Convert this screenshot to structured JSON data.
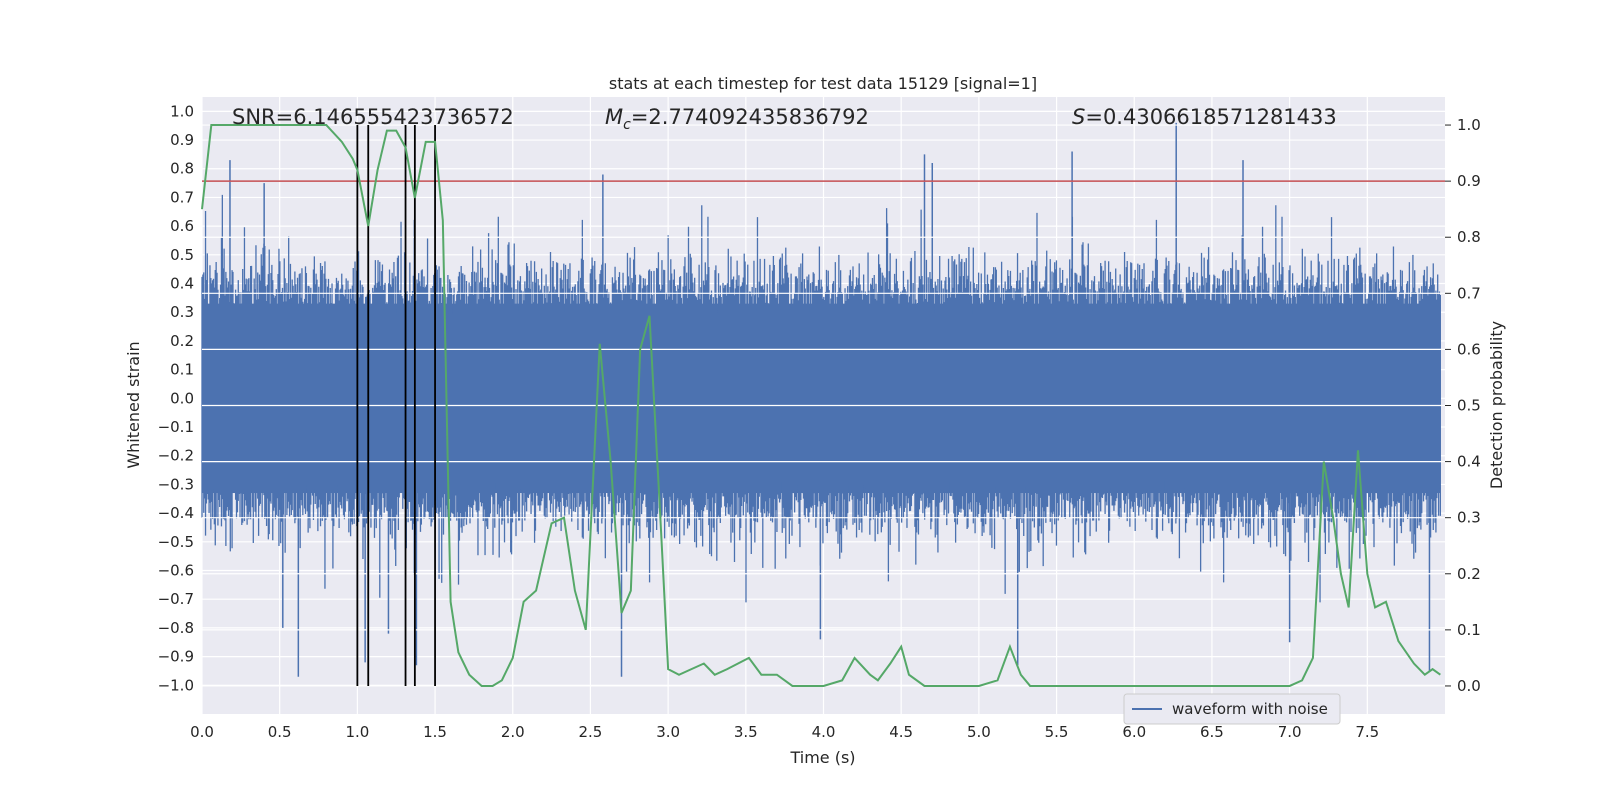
{
  "chart_data": {
    "type": "line",
    "title": "stats at each timestep for test data 15129 [signal=1]",
    "xlabel": "Time (s)",
    "ylabel_left": "Whitened strain",
    "ylabel_right": "Detection probability",
    "xlim": [
      0,
      8
    ],
    "ylim_left": [
      -1.1,
      1.05
    ],
    "ylim_right": [
      -0.05,
      1.05
    ],
    "x_ticks": [
      "0.0",
      "0.5",
      "1.0",
      "1.5",
      "2.0",
      "2.5",
      "3.0",
      "3.5",
      "4.0",
      "4.5",
      "5.0",
      "5.5",
      "6.0",
      "6.5",
      "7.0",
      "7.5"
    ],
    "y_left_ticks": [
      "1.0",
      "0.9",
      "0.8",
      "0.7",
      "0.6",
      "0.5",
      "0.4",
      "0.3",
      "0.2",
      "0.1",
      "0.0",
      "−0.1",
      "−0.2",
      "−0.3",
      "−0.4",
      "−0.5",
      "−0.6",
      "−0.7",
      "−0.8",
      "−0.9",
      "−1.0"
    ],
    "y_right_ticks": [
      "1.0",
      "0.9",
      "0.8",
      "0.7",
      "0.6",
      "0.5",
      "0.4",
      "0.3",
      "0.2",
      "0.1",
      "0.0"
    ],
    "grid": true,
    "legend_position": "bottom-right",
    "annotations": {
      "snr": "SNR=6.146555423736572",
      "mc_symbol": "M",
      "mc_sub": "c",
      "mc_value": "=2.774092435836792",
      "s_symbol": "S",
      "s_value": "=0.4306618571281433"
    },
    "threshold": {
      "value": 0.9,
      "axis": "right",
      "color": "#c44e52"
    },
    "vertical_lines": [
      1.0,
      1.07,
      1.31,
      1.37,
      1.5
    ],
    "series": [
      {
        "name": "waveform with noise",
        "axis": "left",
        "color": "#4c72b0",
        "kind": "noise-envelope",
        "x_range": [
          0,
          7.97
        ],
        "core_amplitude": 0.4,
        "spikes": [
          {
            "x": 0.18,
            "y": 0.83
          },
          {
            "x": 0.62,
            "y": -0.97
          },
          {
            "x": 0.52,
            "y": -0.8
          },
          {
            "x": 1.05,
            "y": -0.92
          },
          {
            "x": 1.38,
            "y": -0.93
          },
          {
            "x": 2.58,
            "y": 0.78
          },
          {
            "x": 2.7,
            "y": -0.97
          },
          {
            "x": 4.65,
            "y": 0.85
          },
          {
            "x": 4.7,
            "y": 0.82
          },
          {
            "x": 5.25,
            "y": -0.93
          },
          {
            "x": 5.6,
            "y": 0.86
          },
          {
            "x": 6.27,
            "y": 0.96
          },
          {
            "x": 6.7,
            "y": 0.83
          },
          {
            "x": 7.9,
            "y": -0.95
          },
          {
            "x": 3.98,
            "y": -0.84
          },
          {
            "x": 7.0,
            "y": -0.85
          },
          {
            "x": 0.4,
            "y": 0.75
          },
          {
            "x": 1.2,
            "y": -0.82
          }
        ]
      },
      {
        "name": "detection probability",
        "axis": "right",
        "color": "#55a868",
        "x": [
          0.0,
          0.06,
          0.12,
          0.3,
          0.5,
          0.8,
          0.9,
          0.97,
          1.0,
          1.07,
          1.13,
          1.19,
          1.25,
          1.31,
          1.37,
          1.44,
          1.5,
          1.55,
          1.6,
          1.65,
          1.72,
          1.8,
          1.87,
          1.93,
          2.0,
          2.07,
          2.15,
          2.25,
          2.33,
          2.4,
          2.47,
          2.56,
          2.63,
          2.7,
          2.76,
          2.82,
          2.88,
          2.95,
          3.0,
          3.07,
          3.15,
          3.23,
          3.3,
          3.38,
          3.45,
          3.52,
          3.6,
          3.7,
          3.8,
          3.9,
          4.0,
          4.12,
          4.2,
          4.3,
          4.35,
          4.43,
          4.5,
          4.55,
          4.65,
          4.75,
          4.85,
          5.0,
          5.12,
          5.2,
          5.27,
          5.33,
          5.45,
          5.7,
          6.0,
          6.27,
          6.5,
          6.8,
          7.0,
          7.08,
          7.15,
          7.22,
          7.28,
          7.33,
          7.38,
          7.44,
          7.5,
          7.55,
          7.62,
          7.7,
          7.8,
          7.87,
          7.92,
          7.97
        ],
        "y": [
          0.85,
          1.0,
          1.0,
          1.0,
          1.0,
          1.0,
          0.97,
          0.94,
          0.92,
          0.82,
          0.92,
          0.99,
          0.99,
          0.96,
          0.87,
          0.97,
          0.97,
          0.83,
          0.15,
          0.06,
          0.02,
          0.0,
          0.0,
          0.01,
          0.05,
          0.15,
          0.17,
          0.29,
          0.3,
          0.17,
          0.1,
          0.61,
          0.4,
          0.13,
          0.17,
          0.6,
          0.66,
          0.3,
          0.03,
          0.02,
          0.03,
          0.04,
          0.02,
          0.03,
          0.04,
          0.05,
          0.02,
          0.02,
          0.0,
          0.0,
          0.0,
          0.01,
          0.05,
          0.02,
          0.01,
          0.04,
          0.07,
          0.02,
          0.0,
          0.0,
          0.0,
          0.0,
          0.01,
          0.07,
          0.02,
          0.0,
          0.0,
          0.0,
          0.0,
          0.0,
          0.0,
          0.0,
          0.0,
          0.01,
          0.05,
          0.4,
          0.3,
          0.2,
          0.14,
          0.42,
          0.2,
          0.14,
          0.15,
          0.08,
          0.04,
          0.02,
          0.03,
          0.02
        ]
      }
    ]
  }
}
